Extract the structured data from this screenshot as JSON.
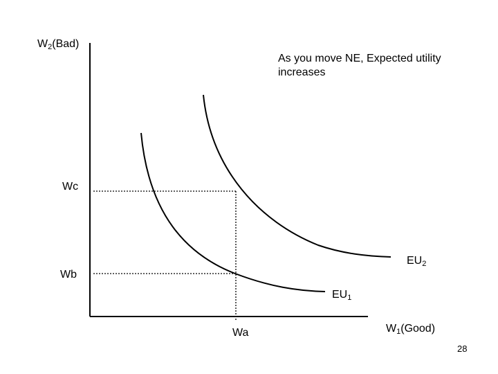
{
  "axes": {
    "y_label": {
      "main": "W",
      "sub": "2",
      "rest": "(Bad)"
    },
    "x_label": {
      "main": "W",
      "sub": "1",
      "rest": "(Good)"
    }
  },
  "note": {
    "line1": "As you move NE, Expected utility",
    "line2": "increases"
  },
  "levels": {
    "wc": "Wc",
    "wb": "Wb",
    "wa": "Wa"
  },
  "curves": {
    "eu1": {
      "main": "EU",
      "sub": "1"
    },
    "eu2": {
      "main": "EU",
      "sub": "2"
    }
  },
  "page_number": "28",
  "colors": {
    "ink": "#000000",
    "background": "#ffffff"
  }
}
